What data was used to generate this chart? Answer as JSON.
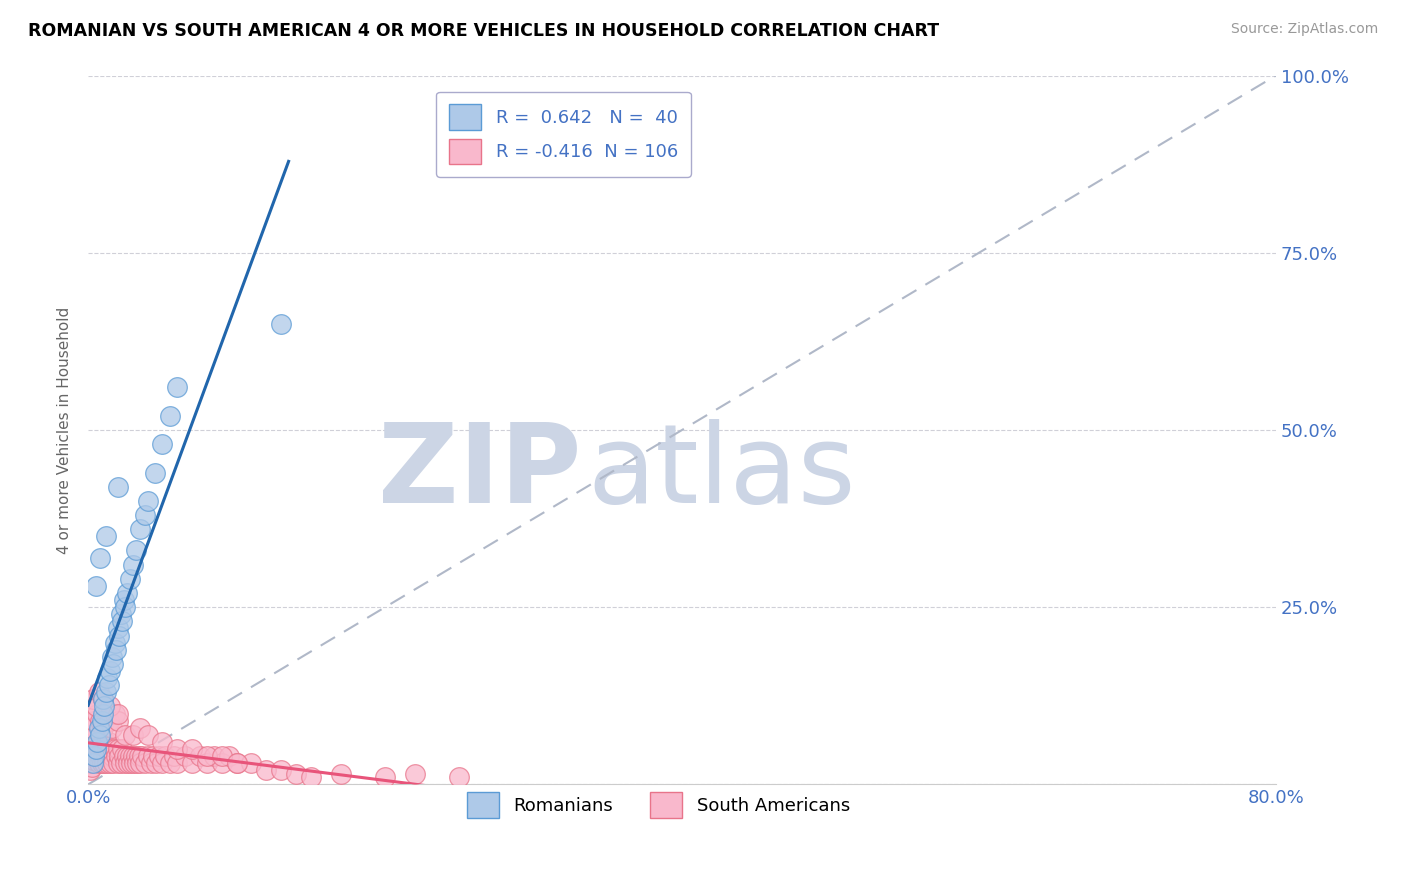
{
  "title": "ROMANIAN VS SOUTH AMERICAN 4 OR MORE VEHICLES IN HOUSEHOLD CORRELATION CHART",
  "source": "Source: ZipAtlas.com",
  "ylabel": "4 or more Vehicles in Household",
  "xlim": [
    0.0,
    80.0
  ],
  "ylim": [
    0.0,
    100.0
  ],
  "blue_R": 0.642,
  "blue_N": 40,
  "pink_R": -0.416,
  "pink_N": 106,
  "blue_color": "#aec9e8",
  "pink_color": "#f9b8cc",
  "blue_edge_color": "#5b9bd5",
  "pink_edge_color": "#e8748a",
  "blue_line_color": "#2166ac",
  "pink_line_color": "#e8547a",
  "ref_line_color": "#b0b8c8",
  "watermark_color": "#ccd5e5",
  "legend_label_blue": "Romanians",
  "legend_label_pink": "South Americans",
  "tick_color": "#4472c4",
  "blue_scatter_x": [
    0.3,
    0.4,
    0.5,
    0.6,
    0.7,
    0.8,
    0.9,
    1.0,
    1.0,
    1.1,
    1.2,
    1.3,
    1.4,
    1.5,
    1.6,
    1.7,
    1.8,
    1.9,
    2.0,
    2.1,
    2.2,
    2.3,
    2.4,
    2.5,
    2.6,
    2.8,
    3.0,
    3.2,
    3.5,
    3.8,
    4.0,
    4.5,
    5.0,
    5.5,
    6.0,
    0.5,
    0.8,
    1.2,
    2.0,
    13.0
  ],
  "blue_scatter_y": [
    3.0,
    4.0,
    5.0,
    6.0,
    8.0,
    7.0,
    9.0,
    10.0,
    12.0,
    11.0,
    13.0,
    15.0,
    14.0,
    16.0,
    18.0,
    17.0,
    20.0,
    19.0,
    22.0,
    21.0,
    24.0,
    23.0,
    26.0,
    25.0,
    27.0,
    29.0,
    31.0,
    33.0,
    36.0,
    38.0,
    40.0,
    44.0,
    48.0,
    52.0,
    56.0,
    28.0,
    32.0,
    35.0,
    42.0,
    65.0
  ],
  "pink_scatter_x": [
    0.1,
    0.15,
    0.2,
    0.25,
    0.3,
    0.35,
    0.4,
    0.45,
    0.5,
    0.5,
    0.6,
    0.65,
    0.7,
    0.75,
    0.8,
    0.85,
    0.9,
    0.95,
    1.0,
    1.0,
    1.1,
    1.1,
    1.2,
    1.2,
    1.3,
    1.3,
    1.4,
    1.4,
    1.5,
    1.5,
    1.6,
    1.7,
    1.8,
    1.9,
    2.0,
    2.0,
    2.1,
    2.2,
    2.3,
    2.4,
    2.5,
    2.6,
    2.7,
    2.8,
    2.9,
    3.0,
    3.1,
    3.2,
    3.3,
    3.4,
    3.5,
    3.6,
    3.8,
    4.0,
    4.2,
    4.4,
    4.6,
    4.8,
    5.0,
    5.2,
    5.5,
    5.8,
    6.0,
    6.5,
    7.0,
    7.5,
    8.0,
    8.5,
    9.0,
    9.5,
    10.0,
    11.0,
    12.0,
    13.0,
    14.0,
    15.0,
    17.0,
    20.0,
    22.0,
    25.0,
    0.2,
    0.4,
    0.6,
    0.8,
    1.0,
    1.2,
    1.4,
    1.6,
    1.8,
    2.0,
    2.5,
    3.0,
    3.5,
    4.0,
    5.0,
    6.0,
    7.0,
    8.0,
    9.0,
    10.0,
    0.3,
    0.5,
    0.7,
    1.0,
    1.5,
    2.0
  ],
  "pink_scatter_y": [
    2.0,
    3.0,
    4.0,
    2.5,
    5.0,
    3.5,
    6.0,
    4.0,
    5.0,
    7.0,
    4.0,
    6.0,
    3.0,
    5.0,
    4.0,
    6.0,
    3.0,
    5.0,
    4.0,
    6.0,
    3.0,
    5.0,
    4.0,
    6.0,
    3.0,
    5.0,
    4.0,
    6.0,
    3.0,
    5.0,
    4.0,
    3.0,
    5.0,
    4.0,
    3.0,
    5.0,
    4.0,
    3.0,
    5.0,
    4.0,
    3.0,
    4.0,
    3.0,
    4.0,
    3.0,
    4.0,
    3.0,
    4.0,
    3.0,
    4.0,
    3.0,
    4.0,
    3.0,
    4.0,
    3.0,
    4.0,
    3.0,
    4.0,
    3.0,
    4.0,
    3.0,
    4.0,
    3.0,
    4.0,
    3.0,
    4.0,
    3.0,
    4.0,
    3.0,
    4.0,
    3.0,
    3.0,
    2.0,
    2.0,
    1.5,
    1.0,
    1.5,
    1.0,
    1.5,
    1.0,
    8.0,
    9.0,
    10.0,
    9.0,
    8.0,
    10.0,
    9.0,
    8.0,
    10.0,
    9.0,
    7.0,
    7.0,
    8.0,
    7.0,
    6.0,
    5.0,
    5.0,
    4.0,
    4.0,
    3.0,
    12.0,
    11.0,
    13.0,
    12.0,
    11.0,
    10.0
  ]
}
